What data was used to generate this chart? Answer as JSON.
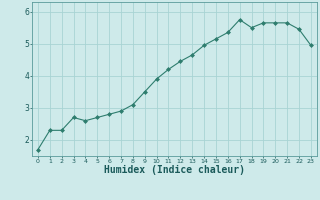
{
  "x": [
    0,
    1,
    2,
    3,
    4,
    5,
    6,
    7,
    8,
    9,
    10,
    11,
    12,
    13,
    14,
    15,
    16,
    17,
    18,
    19,
    20,
    21,
    22,
    23
  ],
  "y": [
    1.7,
    2.3,
    2.3,
    2.7,
    2.6,
    2.7,
    2.8,
    2.9,
    3.1,
    3.5,
    3.9,
    4.2,
    4.45,
    4.65,
    4.95,
    5.15,
    5.35,
    5.75,
    5.5,
    5.65,
    5.65,
    5.65,
    5.45,
    4.95
  ],
  "line_color": "#2e7d6e",
  "marker": "D",
  "marker_size": 2,
  "bg_color": "#ceeaea",
  "grid_color": "#a8d4d4",
  "xlabel": "Humidex (Indice chaleur)",
  "xlabel_fontsize": 7,
  "ylim": [
    1.5,
    6.3
  ],
  "xlim": [
    -0.5,
    23.5
  ],
  "yticks": [
    2,
    3,
    4,
    5,
    6
  ],
  "xticks": [
    0,
    1,
    2,
    3,
    4,
    5,
    6,
    7,
    8,
    9,
    10,
    11,
    12,
    13,
    14,
    15,
    16,
    17,
    18,
    19,
    20,
    21,
    22,
    23
  ]
}
